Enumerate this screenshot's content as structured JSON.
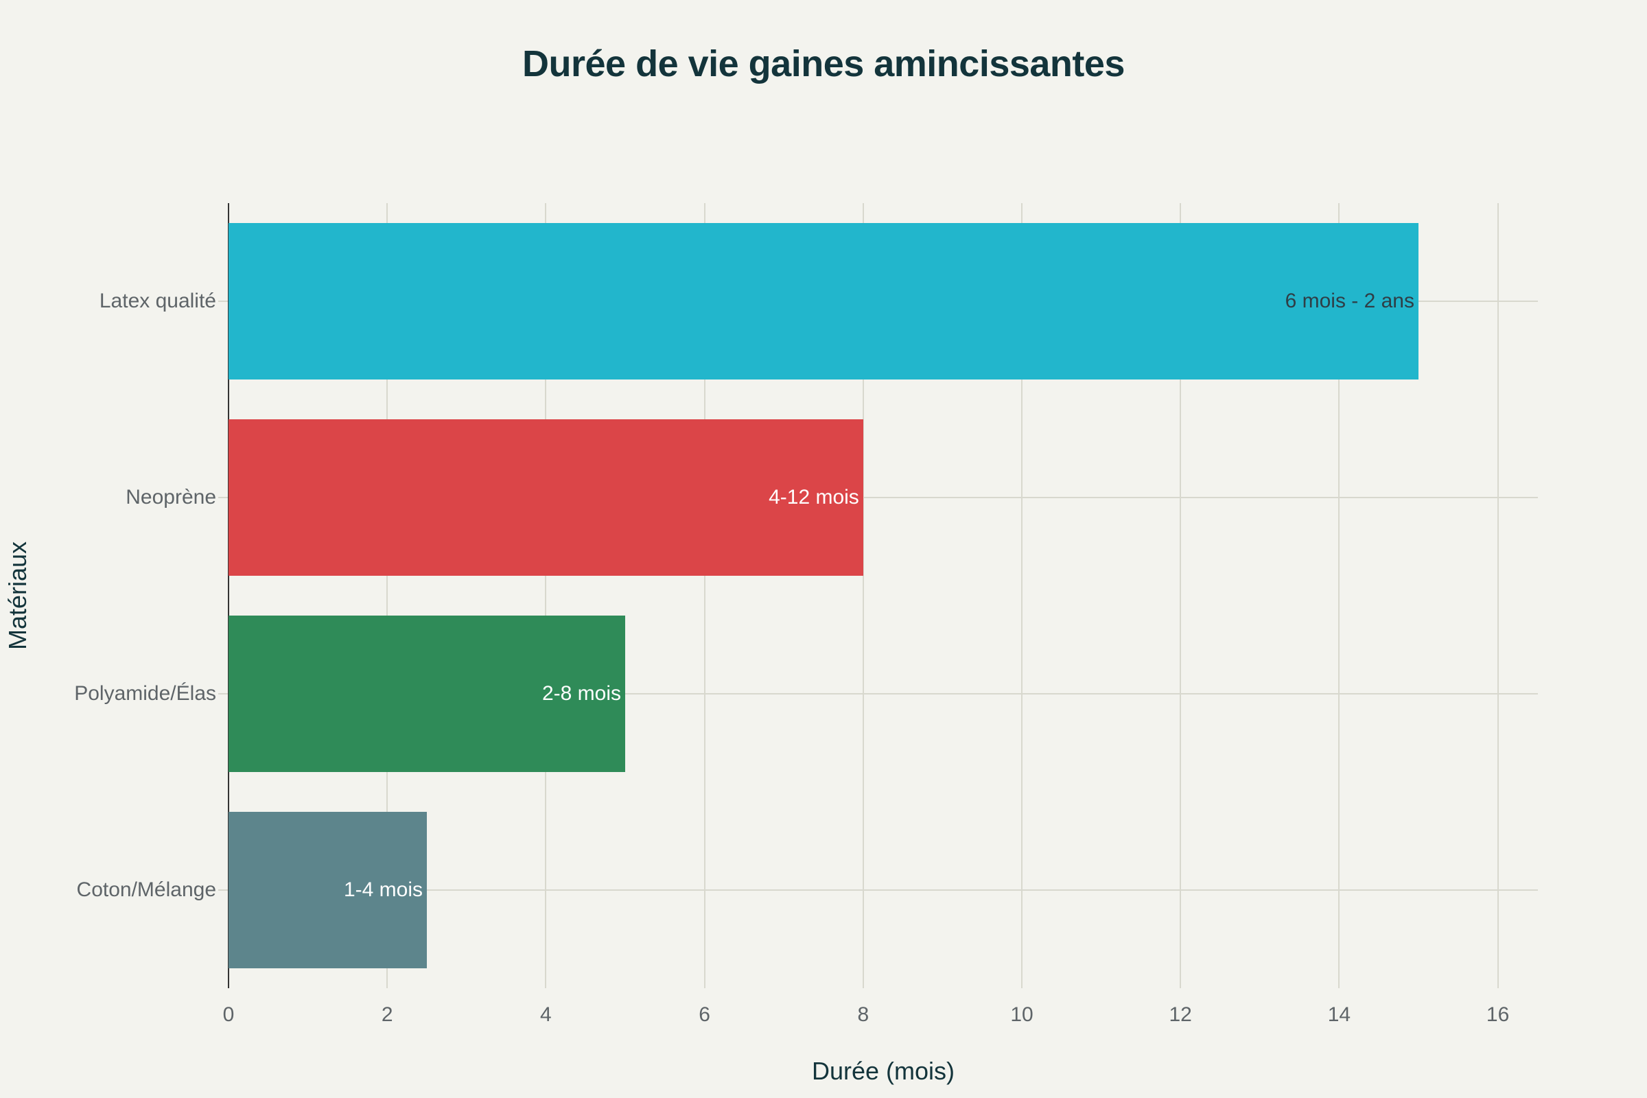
{
  "chart_data": {
    "type": "bar",
    "orientation": "horizontal",
    "title": "Durée de vie gaines amincissantes",
    "xlabel": "Durée (mois)",
    "ylabel": "Matériaux",
    "xlim": [
      0,
      16.5
    ],
    "x_ticks": [
      "0",
      "2",
      "4",
      "6",
      "8",
      "10",
      "12",
      "14",
      "16"
    ],
    "grid": true,
    "legend": null,
    "categories": [
      "Latex qualité",
      "Neoprène",
      "Polyamide/Élas",
      "Coton/Mélange"
    ],
    "values": [
      15,
      8,
      5,
      2.5
    ],
    "bar_labels": [
      "6 mois - 2 ans",
      "4-12 mois",
      "2-8 mois",
      "1-4 mois"
    ],
    "colors": [
      "#22b6cc",
      "#db4548",
      "#2f8b58",
      "#5d858c"
    ],
    "label_colors": [
      "#2f3e46",
      "#ffffff",
      "#ffffff",
      "#ffffff"
    ]
  }
}
